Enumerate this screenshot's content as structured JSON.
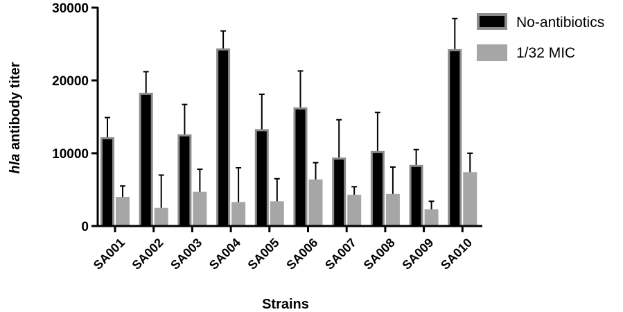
{
  "chart_data": {
    "type": "bar",
    "categories": [
      "SA001",
      "SA002",
      "SA003",
      "SA004",
      "SA005",
      "SA006",
      "SA007",
      "SA008",
      "SA009",
      "SA010"
    ],
    "series": [
      {
        "name": "No-antibiotics",
        "color": "#000000",
        "edge": "#8c8c8c",
        "values": [
          12200,
          18300,
          12600,
          24400,
          13300,
          16300,
          9400,
          10300,
          8400,
          24300
        ],
        "error_plus": [
          2700,
          2900,
          4100,
          2400,
          4800,
          5000,
          5200,
          5300,
          2100,
          4200
        ]
      },
      {
        "name": "1/32 MIC",
        "color": "#a6a6a6",
        "edge": "#a6a6a6",
        "values": [
          4000,
          2500,
          4700,
          3300,
          3400,
          6400,
          4300,
          4400,
          2300,
          7400
        ],
        "error_plus": [
          1500,
          4500,
          3100,
          4700,
          3100,
          2300,
          1100,
          3700,
          1100,
          2600
        ]
      }
    ],
    "ylabel_italic": "hla",
    "ylabel_rest": " antibody titer",
    "xlabel": "Strains",
    "ylim": [
      0,
      30000
    ],
    "yticks": [
      0,
      10000,
      20000,
      30000
    ],
    "ytick_labels": [
      "0",
      "10000",
      "20000",
      "30000"
    ],
    "grid": false,
    "legend_position": "top-right"
  }
}
